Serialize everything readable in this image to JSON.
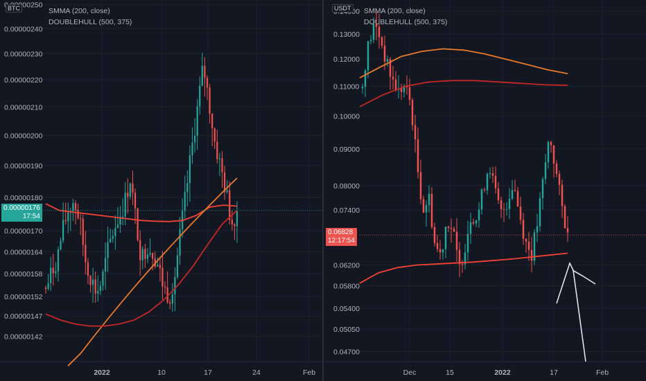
{
  "charts": [
    {
      "symbol": "BTC",
      "legend": [
        "SMMA (200, close)",
        "DOUBLEHULL (500, 375)"
      ],
      "current_price": "0.00000176",
      "countdown": "17:54",
      "badge_color": "#26a69a"
    },
    {
      "symbol": "USDT",
      "legend": [
        "SMMA (200, close)",
        "DOUBLEHULL (500, 375)"
      ],
      "current_price": "0.06828",
      "countdown": "12:17:54",
      "badge_color": "#ef5350"
    }
  ],
  "chart_data": [
    {
      "type": "candlestick",
      "yscale": "log",
      "ylim": [
        1.36e-06,
        2.52e-06
      ],
      "y_ticks": [
        "0.00000250",
        "0.00000240",
        "0.00000230",
        "0.00000220",
        "0.00000210",
        "0.00000200",
        "0.00000190",
        "0.00000180",
        "0.00000170",
        "0.00000164",
        "0.00000158",
        "0.00000152",
        "0.00000147",
        "0.00000142"
      ],
      "x_ticks": [
        "2022",
        "10",
        "17",
        "24",
        "Feb"
      ],
      "x_tick_bold": "2022",
      "current_price_value": 1.76e-06,
      "close_path": [
        1.54e-06,
        1.58e-06,
        1.62e-06,
        1.7e-06,
        1.76e-06,
        1.79e-06,
        1.73e-06,
        1.62e-06,
        1.57e-06,
        1.53e-06,
        1.56e-06,
        1.64e-06,
        1.7e-06,
        1.74e-06,
        1.78e-06,
        1.86e-06,
        1.73e-06,
        1.62e-06,
        1.66e-06,
        1.64e-06,
        1.6e-06,
        1.54e-06,
        1.52e-06,
        1.58e-06,
        1.7e-06,
        1.82e-06,
        1.96e-06,
        2.1e-06,
        2.25e-06,
        2.12e-06,
        1.98e-06,
        1.9e-06,
        1.82e-06,
        1.72e-06,
        1.76e-06
      ],
      "series": [
        {
          "name": "SMMA (200, close)",
          "color": "#f44336",
          "values": [
            1.78e-06,
            1.76e-06,
            1.755e-06,
            1.75e-06,
            1.745e-06,
            1.74e-06,
            1.735e-06,
            1.73e-06,
            1.728e-06,
            1.727e-06,
            1.73e-06,
            1.745e-06,
            1.77e-06,
            1.776e-06,
            1.773e-06
          ]
        },
        {
          "name": "DOUBLEHULL (500, 375)",
          "color": "#e97a2b",
          "values": [
            1.35e-06,
            1.38e-06,
            1.42e-06,
            1.46e-06,
            1.5e-06,
            1.54e-06,
            1.58e-06,
            1.62e-06,
            1.66e-06,
            1.7e-06,
            1.74e-06,
            1.78e-06,
            1.82e-06,
            1.86e-06
          ]
        },
        {
          "name": "",
          "color": "#c62828",
          "values": [
            1.475e-06,
            1.46e-06,
            1.45e-06,
            1.445e-06,
            1.445e-06,
            1.45e-06,
            1.46e-06,
            1.48e-06,
            1.51e-06,
            1.55e-06,
            1.6e-06,
            1.66e-06,
            1.72e-06,
            1.76e-06
          ]
        }
      ]
    },
    {
      "type": "candlestick",
      "yscale": "log",
      "ylim": [
        0.0455,
        0.145
      ],
      "y_ticks": [
        "0.14000",
        "0.13000",
        "0.12000",
        "0.11000",
        "0.10000",
        "0.09000",
        "0.08000",
        "0.07400",
        "0.06200",
        "0.05800",
        "0.05400",
        "0.05050",
        "0.04700"
      ],
      "x_ticks": [
        "Dec",
        "15",
        "2022",
        "17",
        "Feb"
      ],
      "x_tick_bold": "2022",
      "current_price_value": 0.06828,
      "close_path": [
        0.112,
        0.126,
        0.134,
        0.128,
        0.118,
        0.112,
        0.108,
        0.11,
        0.104,
        0.086,
        0.074,
        0.077,
        0.066,
        0.064,
        0.072,
        0.069,
        0.061,
        0.066,
        0.073,
        0.072,
        0.079,
        0.086,
        0.078,
        0.073,
        0.076,
        0.081,
        0.073,
        0.067,
        0.064,
        0.071,
        0.082,
        0.094,
        0.084,
        0.075,
        0.068
      ],
      "series": [
        {
          "name": "SMMA (200, close)",
          "color": "#f44336",
          "values": [
            0.0585,
            0.0605,
            0.0615,
            0.062,
            0.0622,
            0.0624,
            0.0626,
            0.0629,
            0.0632,
            0.0636,
            0.064,
            0.0644
          ]
        },
        {
          "name": "DOUBLEHULL (500, 375)",
          "color": "#e97a2b",
          "values": [
            0.113,
            0.117,
            0.121,
            0.123,
            0.124,
            0.1235,
            0.122,
            0.12,
            0.118,
            0.116,
            0.1145
          ]
        },
        {
          "name": "",
          "color": "#c62828",
          "values": [
            0.103,
            0.107,
            0.11,
            0.1115,
            0.112,
            0.112,
            0.1115,
            0.111,
            0.1105,
            0.1103
          ]
        }
      ],
      "annotation": "hand-drawn white lines"
    }
  ]
}
